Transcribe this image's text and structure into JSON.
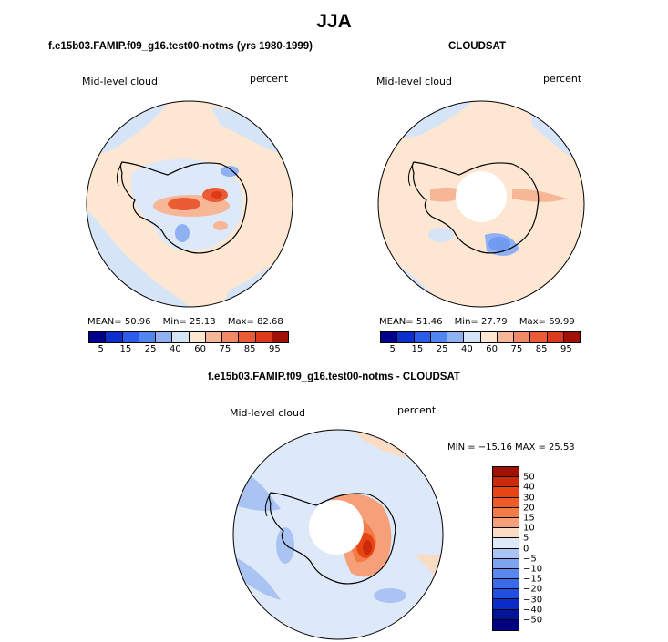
{
  "title": "JJA",
  "panels": {
    "model": {
      "title": "f.e15b03.FAMIP.f09_g16.test00-notms (yrs 1980-1999)",
      "variable": "Mid-level cloud",
      "units": "percent",
      "mean_label": "MEAN=",
      "mean": "50.96",
      "min_label": "Min=",
      "min": "25.13",
      "max_label": "Max=",
      "max": "82.68"
    },
    "obs": {
      "title": "CLOUDSAT",
      "variable": "Mid-level cloud",
      "units": "percent",
      "mean_label": "MEAN=",
      "mean": "51.46",
      "min_label": "Min=",
      "min": "27.79",
      "max_label": "Max=",
      "max": "69.99"
    },
    "diff": {
      "title": "f.e15b03.FAMIP.f09_g16.test00-notms - CLOUDSAT",
      "variable": "Mid-level cloud",
      "units": "percent",
      "minmax_text": "MIN = −15.16  MAX =   25.53"
    }
  },
  "colorbar_main": {
    "colors": [
      "#00008c",
      "#0a2fcc",
      "#2a5ee8",
      "#4f86f0",
      "#8fb0f2",
      "#d5e4f7",
      "#fde7d2",
      "#f7b696",
      "#f28a66",
      "#ec5c34",
      "#dc3a1a",
      "#a01005"
    ],
    "labels": [
      "5",
      "15",
      "25",
      "40",
      "60",
      "75",
      "85",
      "95"
    ]
  },
  "colorbar_diff": {
    "colors": [
      "#a01005",
      "#cc2a0a",
      "#e84515",
      "#f05a28",
      "#f47a48",
      "#f6a07a",
      "#fadcc4",
      "#dde9f8",
      "#a9c4f2",
      "#7ea4ee",
      "#5a87ec",
      "#3a6ae8",
      "#1f4ee0",
      "#0a2cc8",
      "#00149a",
      "#000080"
    ],
    "labels": [
      "50",
      "40",
      "30",
      "20",
      "15",
      "10",
      "5",
      "0",
      "−5",
      "−10",
      "−15",
      "−20",
      "−30",
      "−40",
      "−50"
    ]
  },
  "colors": {
    "ocean_base": "#fde7d2",
    "land_base": "#dde9f8"
  }
}
